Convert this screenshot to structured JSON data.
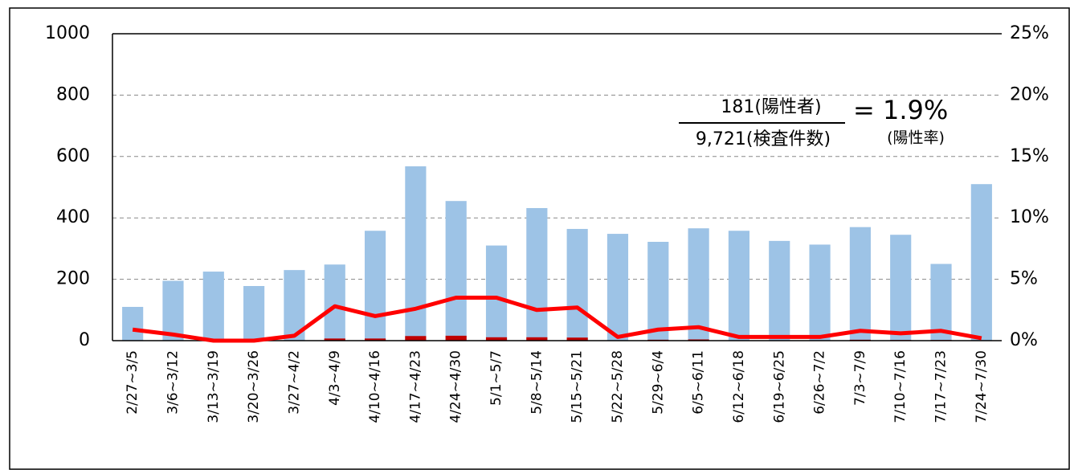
{
  "chart_data": {
    "type": "bar_line",
    "categories": [
      "2/27~3/5",
      "3/6~3/12",
      "3/13~3/19",
      "3/20~3/26",
      "3/27~4/2",
      "4/3~4/9",
      "4/10~4/16",
      "4/17~4/23",
      "4/24~4/30",
      "5/1~5/7",
      "5/8~5/14",
      "5/15~5/21",
      "5/22~5/28",
      "5/29~6/4",
      "6/5~6/11",
      "6/12~6/18",
      "6/19~6/25",
      "6/26~7/2",
      "7/3~7/9",
      "7/10~7/16",
      "7/17~7/23",
      "7/24~7/30"
    ],
    "series": [
      {
        "color": "#9dc3e6",
        "values": [
          110,
          195,
          225,
          178,
          230,
          248,
          358,
          568,
          455,
          310,
          432,
          364,
          348,
          322,
          366,
          358,
          325,
          313,
          370,
          345,
          250,
          510
        ]
      },
      {
        "color": "#c00000",
        "values": [
          1,
          1,
          0,
          0,
          1,
          7,
          7,
          15,
          16,
          11,
          11,
          10,
          1,
          3,
          4,
          1,
          1,
          1,
          3,
          2,
          2,
          1
        ]
      },
      {
        "color": "#ff0000",
        "axis": "y2",
        "values": [
          0.9,
          0.5,
          0,
          0,
          0.4,
          2.8,
          2.0,
          2.6,
          3.5,
          3.5,
          2.5,
          2.7,
          0.3,
          0.9,
          1.1,
          0.3,
          0.3,
          0.3,
          0.8,
          0.6,
          0.8,
          0.2
        ]
      }
    ],
    "ylim": [
      0,
      1000
    ],
    "yticks": [
      0,
      200,
      400,
      600,
      800,
      1000
    ],
    "y2lim": [
      0,
      25
    ],
    "y2ticks": [
      {
        "value": 0,
        "label": "0%"
      },
      {
        "value": 5,
        "label": "5%"
      },
      {
        "value": 10,
        "label": "10%"
      },
      {
        "value": 15,
        "label": "15%"
      },
      {
        "value": 20,
        "label": "20%"
      },
      {
        "value": 25,
        "label": "25%"
      }
    ],
    "grid": true,
    "annotation": {
      "numerator": "181(陽性者)",
      "denominator": "9,721(検査件数)",
      "result": "= 1.9%",
      "result_label": "(陽性率)"
    }
  }
}
